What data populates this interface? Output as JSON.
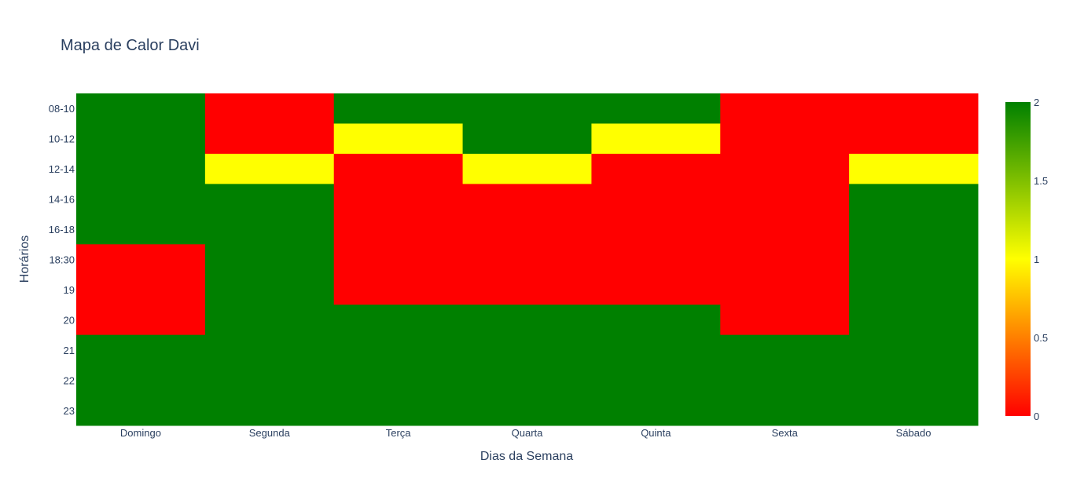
{
  "chart_data": {
    "type": "heatmap",
    "title": "Mapa de Calor Davi",
    "xlabel": "Dias da Semana",
    "ylabel": "Horários",
    "x": [
      "Domingo",
      "Segunda",
      "Terça",
      "Quarta",
      "Quinta",
      "Sexta",
      "Sábado"
    ],
    "y": [
      "08-10",
      "10-12",
      "12-14",
      "14-16",
      "16-18",
      "18:30",
      "19",
      "20",
      "21",
      "22",
      "23"
    ],
    "z": [
      [
        2,
        0,
        2,
        2,
        2,
        0,
        0
      ],
      [
        2,
        0,
        1,
        2,
        1,
        0,
        0
      ],
      [
        2,
        1,
        0,
        1,
        0,
        0,
        1
      ],
      [
        2,
        2,
        0,
        0,
        0,
        0,
        2
      ],
      [
        2,
        2,
        0,
        0,
        0,
        0,
        2
      ],
      [
        0,
        2,
        0,
        0,
        0,
        0,
        2
      ],
      [
        0,
        2,
        0,
        0,
        0,
        0,
        2
      ],
      [
        0,
        2,
        2,
        2,
        2,
        0,
        2
      ],
      [
        2,
        2,
        2,
        2,
        2,
        2,
        2
      ],
      [
        2,
        2,
        2,
        2,
        2,
        2,
        2
      ],
      [
        2,
        2,
        2,
        2,
        2,
        2,
        2
      ]
    ],
    "zrange": [
      0,
      2
    ],
    "colorscale": [
      [
        0,
        "#ff0000"
      ],
      [
        0.5,
        "#ffff00"
      ],
      [
        1,
        "#008000"
      ]
    ],
    "colorbar_ticks": [
      "0",
      "0.5",
      "1",
      "1.5",
      "2"
    ],
    "legend_position": "right"
  }
}
